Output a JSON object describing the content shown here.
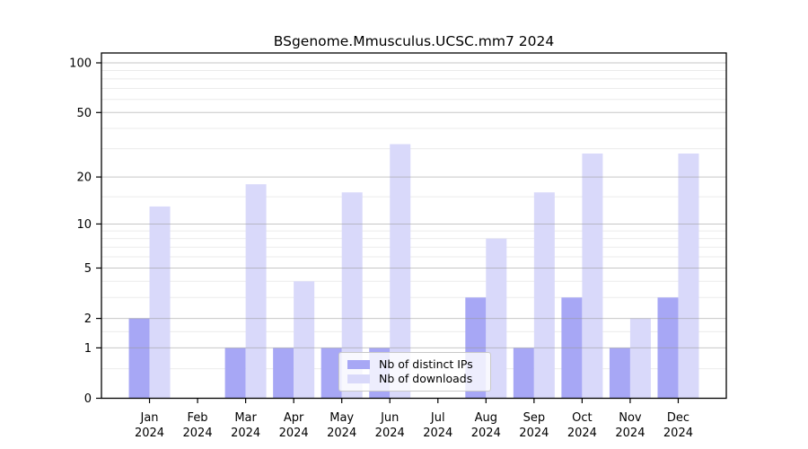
{
  "chart_data": {
    "type": "bar",
    "title": "BSgenome.Mmusculus.UCSC.mm7 2024",
    "categories": [
      "Jan",
      "Feb",
      "Mar",
      "Apr",
      "May",
      "Jun",
      "Jul",
      "Aug",
      "Sep",
      "Oct",
      "Nov",
      "Dec"
    ],
    "category_year": "2024",
    "series": [
      {
        "name": "Nb of distinct IPs",
        "color": "#a7a7f5",
        "values": [
          2,
          0,
          1,
          1,
          1,
          1,
          0,
          3,
          1,
          3,
          1,
          3
        ]
      },
      {
        "name": "Nb of downloads",
        "color": "#d9d9fa",
        "values": [
          13,
          0,
          18,
          4,
          16,
          32,
          0,
          8,
          16,
          28,
          2,
          28
        ]
      }
    ],
    "yscale": "log1p",
    "ylim": [
      0,
      113
    ],
    "ytick_values": [
      100,
      50,
      20,
      10,
      5,
      2,
      1,
      0
    ],
    "minor_gridline_values": [
      0.5,
      1.5,
      3,
      4,
      6,
      7,
      8,
      9,
      15,
      30,
      40,
      60,
      70,
      80,
      90
    ],
    "grid": true,
    "legend_position": "lower center",
    "colors": {
      "major_grid": "#999999",
      "minor_grid": "#ebebeb",
      "spine": "#000000"
    }
  }
}
